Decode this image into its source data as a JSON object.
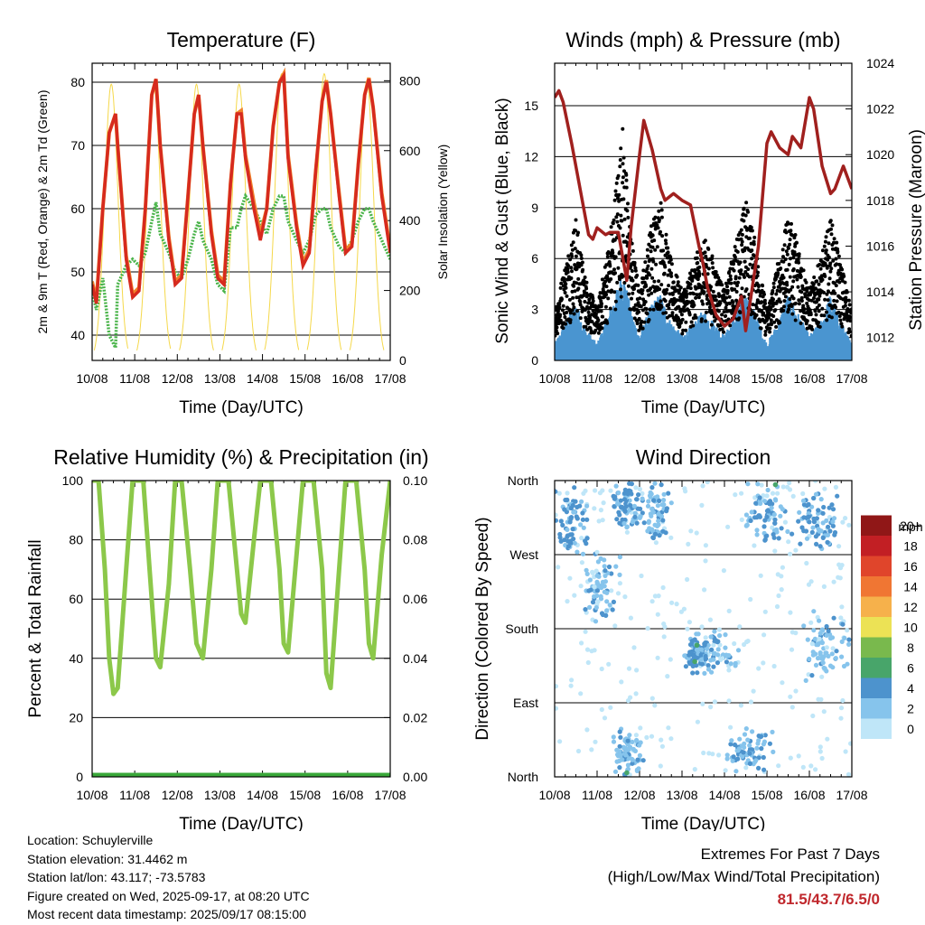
{
  "time_ticks": [
    "10/08",
    "11/08",
    "12/08",
    "13/08",
    "14/08",
    "15/08",
    "16/08",
    "17/08"
  ],
  "colors": {
    "temp_2m": "#d62a1e",
    "temp_9m": "#f0822a",
    "dewpoint": "#4ab44a",
    "solar": "#f5d84a",
    "wind": "#4a95d0",
    "gust": "#000000",
    "pressure": "#a0201e",
    "humidity": "#8cc84a",
    "precip": "#3aa83a"
  },
  "chart_data": [
    {
      "type": "line",
      "title": "Temperature (F)",
      "xlabel": "Time (Day/UTC)",
      "ylabel": "2m & 9m T (Red, Orange) & 2m Td (Green)",
      "ylabel_right": "Solar Insolation (Yellow)",
      "ylim": [
        36,
        83
      ],
      "ylim_right": [
        0,
        850
      ],
      "yticks": [
        40,
        50,
        60,
        70,
        80
      ],
      "yticks_right": [
        0,
        200,
        400,
        600,
        800
      ],
      "xlim": [
        0,
        7
      ],
      "grid": "horizontal",
      "x": [
        0,
        0.1,
        0.25,
        0.4,
        0.55,
        0.6,
        0.8,
        0.95,
        1.1,
        1.25,
        1.4,
        1.5,
        1.6,
        1.8,
        1.95,
        2.1,
        2.25,
        2.4,
        2.5,
        2.6,
        2.8,
        2.95,
        3.1,
        3.25,
        3.4,
        3.5,
        3.6,
        3.8,
        3.95,
        4.1,
        4.25,
        4.4,
        4.5,
        4.6,
        4.8,
        4.95,
        5.1,
        5.25,
        5.4,
        5.5,
        5.6,
        5.8,
        5.95,
        6.1,
        6.25,
        6.4,
        6.5,
        6.6,
        6.8,
        7
      ],
      "series": [
        {
          "name": "2m T",
          "values": [
            48,
            45,
            60,
            72,
            75,
            70,
            52,
            46,
            47,
            60,
            78,
            80.5,
            70,
            55,
            48,
            49,
            62,
            75,
            78,
            70,
            56,
            49,
            48,
            64,
            75,
            75,
            68,
            60,
            55,
            60,
            73,
            80,
            81,
            68,
            57,
            51,
            53,
            66,
            77,
            80,
            75,
            62,
            53,
            54,
            67,
            78,
            80.5,
            76,
            62,
            53
          ]
        },
        {
          "name": "9m T",
          "values": [
            48.5,
            45.5,
            60,
            72,
            75,
            70,
            52.5,
            46.5,
            47.5,
            60,
            78,
            80.5,
            70,
            55.5,
            48.5,
            49.5,
            62,
            75,
            78,
            70,
            56.5,
            49.5,
            48.5,
            64,
            75,
            75.5,
            68.5,
            61,
            56,
            60,
            73,
            80,
            81.3,
            68.5,
            57.5,
            51.5,
            53.5,
            66,
            77,
            80.3,
            75,
            62.5,
            53.5,
            54.5,
            67,
            78,
            80.7,
            76,
            62.5,
            53.5
          ]
        },
        {
          "name": "2m Td",
          "values": [
            47,
            44,
            49,
            40,
            38,
            48,
            51,
            52,
            51,
            53,
            58,
            61,
            56,
            53,
            50,
            49,
            52,
            56,
            58,
            55,
            52,
            48,
            47,
            57,
            57,
            60,
            62,
            60,
            58,
            56,
            60,
            62,
            62,
            58,
            55,
            53,
            55,
            59,
            60,
            60,
            57,
            54,
            53,
            55,
            58,
            60,
            60,
            58,
            55,
            52
          ]
        },
        {
          "name": "Solar Insolation",
          "axis": "right",
          "day_peaks": [
            0.45,
            1.45,
            2.45,
            3.45,
            4.45,
            5.45,
            6.45
          ],
          "peak_values": [
            790,
            780,
            790,
            790,
            820,
            820,
            800
          ]
        }
      ]
    },
    {
      "type": "scatter",
      "title": "Winds (mph) & Pressure (mb)",
      "xlabel": "Time (Day/UTC)",
      "ylabel": "Sonic Wind & Gust (Blue, Black)",
      "ylabel_right": "Station Pressure (Maroon)",
      "ylim": [
        0,
        17.5
      ],
      "yticks": [
        0,
        3,
        6,
        9,
        12,
        15
      ],
      "ylim_right": [
        1011,
        1024
      ],
      "yticks_right": [
        1012,
        1014,
        1016,
        1018,
        1020,
        1022,
        1024
      ],
      "xlim": [
        0,
        7
      ],
      "grid": "horizontal",
      "gust_envelope": {
        "x": [
          0,
          0.3,
          0.5,
          0.7,
          1.0,
          1.3,
          1.5,
          1.6,
          1.8,
          2.0,
          2.3,
          2.5,
          2.7,
          3.0,
          3.2,
          3.5,
          3.7,
          4.0,
          4.3,
          4.5,
          4.7,
          5.0,
          5.3,
          5.5,
          5.7,
          6.0,
          6.3,
          6.5,
          6.7,
          7.0
        ],
        "values": [
          2,
          5,
          7,
          4,
          2,
          6,
          10,
          12,
          6,
          3,
          7,
          8,
          5,
          3,
          4,
          6,
          5,
          3,
          6,
          8,
          6,
          2,
          5,
          7,
          6,
          3,
          5,
          7,
          5,
          2
        ]
      },
      "wind_envelope": {
        "x": [
          0,
          0.3,
          0.5,
          0.7,
          1.0,
          1.3,
          1.5,
          1.6,
          1.8,
          2.0,
          2.3,
          2.5,
          2.7,
          3.0,
          3.2,
          3.5,
          3.7,
          4.0,
          4.3,
          4.5,
          4.7,
          5.0,
          5.3,
          5.5,
          5.7,
          6.0,
          6.3,
          6.5,
          6.7,
          7.0
        ],
        "values": [
          1,
          2.5,
          3.5,
          2,
          1,
          3,
          4.5,
          5.5,
          3,
          1.5,
          3.5,
          4,
          2.5,
          1.5,
          2,
          3,
          2.5,
          1.5,
          3,
          4,
          3,
          1,
          2.5,
          4,
          3,
          1.5,
          2.5,
          4,
          2.5,
          1
        ]
      },
      "pressure": {
        "x": [
          0,
          0.1,
          0.2,
          0.4,
          0.6,
          0.8,
          0.9,
          1.0,
          1.2,
          1.3,
          1.5,
          1.7,
          1.8,
          2.0,
          2.1,
          2.3,
          2.5,
          2.6,
          2.8,
          3.0,
          3.2,
          3.4,
          3.5,
          3.6,
          3.8,
          4.0,
          4.2,
          4.4,
          4.5,
          4.6,
          4.8,
          5.0,
          5.1,
          5.3,
          5.5,
          5.6,
          5.8,
          6.0,
          6.1,
          6.3,
          6.5,
          6.6,
          6.8,
          7.0
        ],
        "values": [
          1022.5,
          1022.8,
          1022.3,
          1020.5,
          1018.5,
          1016.5,
          1016.3,
          1016.8,
          1016.5,
          1016.6,
          1016.6,
          1014.5,
          1016.8,
          1020.0,
          1021.5,
          1020.2,
          1018.5,
          1018.0,
          1018.3,
          1018.0,
          1017.8,
          1016.0,
          1015.2,
          1014.2,
          1013.0,
          1012.5,
          1012.8,
          1013.8,
          1012.3,
          1013.5,
          1016.0,
          1020.5,
          1021.0,
          1020.3,
          1020.0,
          1020.8,
          1020.3,
          1022.5,
          1022.0,
          1019.5,
          1018.3,
          1018.5,
          1019.5,
          1018.5
        ]
      }
    },
    {
      "type": "line",
      "title": "Relative Humidity (%) & Precipitation (in)",
      "xlabel": "Time (Day/UTC)",
      "ylabel": "Percent & Total Rainfall",
      "ylim": [
        0,
        100
      ],
      "yticks": [
        0,
        20,
        40,
        60,
        80,
        100
      ],
      "ylim_right": [
        0,
        0.1
      ],
      "yticks_right": [
        "0.00",
        "0.02",
        "0.04",
        "0.06",
        "0.08",
        "0.10"
      ],
      "xlim": [
        0,
        7
      ],
      "grid": "horizontal",
      "x": [
        0,
        0.15,
        0.3,
        0.4,
        0.5,
        0.6,
        0.8,
        0.95,
        1.2,
        1.35,
        1.5,
        1.6,
        1.8,
        1.95,
        2.1,
        2.3,
        2.45,
        2.6,
        2.8,
        2.95,
        3.2,
        3.4,
        3.5,
        3.6,
        3.8,
        3.95,
        4.2,
        4.4,
        4.5,
        4.6,
        4.8,
        4.95,
        5.2,
        5.4,
        5.5,
        5.6,
        5.8,
        5.95,
        6.2,
        6.4,
        6.5,
        6.6,
        6.8,
        7.0
      ],
      "series": [
        {
          "name": "Relative Humidity",
          "values": [
            100,
            100,
            70,
            40,
            28,
            30,
            70,
            100,
            100,
            70,
            40,
            37,
            65,
            100,
            100,
            70,
            45,
            40,
            70,
            100,
            100,
            70,
            55,
            52,
            80,
            100,
            100,
            70,
            45,
            42,
            75,
            100,
            100,
            70,
            35,
            30,
            70,
            100,
            100,
            70,
            45,
            40,
            75,
            100
          ]
        },
        {
          "name": "Total Precipitation",
          "axis": "right",
          "values": [
            0,
            0,
            0,
            0,
            0,
            0,
            0,
            0,
            0,
            0,
            0,
            0,
            0,
            0,
            0,
            0,
            0,
            0,
            0,
            0,
            0,
            0,
            0,
            0,
            0,
            0,
            0,
            0,
            0,
            0,
            0,
            0,
            0,
            0,
            0,
            0,
            0,
            0,
            0,
            0,
            0,
            0,
            0,
            0
          ]
        }
      ]
    },
    {
      "type": "scatter",
      "title": "Wind Direction",
      "xlabel": "Time (Day/UTC)",
      "ylabel": "Direction (Colored By Speed)",
      "yticks": [
        "North",
        "East",
        "South",
        "West",
        "North"
      ],
      "ylim": [
        0,
        360
      ],
      "xlim": [
        0,
        7
      ],
      "grid": "horizontal",
      "legend": {
        "title": "mph",
        "placement": "right",
        "labels": [
          "0",
          "2",
          "4",
          "6",
          "8",
          "10",
          "12",
          "14",
          "16",
          "18",
          "20+"
        ],
        "colors": [
          "#bfe6f8",
          "#86c4ec",
          "#4d93cd",
          "#48a56a",
          "#79b94d",
          "#ece255",
          "#f6b14b",
          "#f07633",
          "#e0452b",
          "#c21f24",
          "#901717"
        ]
      },
      "clusters": [
        {
          "x_center": 0.4,
          "x_spread": 0.5,
          "dir_center": 310,
          "dir_spread": 50,
          "speed": 3
        },
        {
          "x_center": 1.7,
          "x_spread": 0.4,
          "dir_center": 330,
          "dir_spread": 30,
          "speed": 3
        },
        {
          "x_center": 2.4,
          "x_spread": 0.4,
          "dir_center": 320,
          "dir_spread": 40,
          "speed": 2
        },
        {
          "x_center": 1.1,
          "x_spread": 0.5,
          "dir_center": 230,
          "dir_spread": 50,
          "speed": 1
        },
        {
          "x_center": 3.7,
          "x_spread": 0.7,
          "dir_center": 150,
          "dir_spread": 30,
          "speed": 1
        },
        {
          "x_center": 3.3,
          "x_spread": 0.3,
          "dir_center": 150,
          "dir_spread": 20,
          "speed": 4
        },
        {
          "x_center": 5.0,
          "x_spread": 0.6,
          "dir_center": 320,
          "dir_spread": 40,
          "speed": 3
        },
        {
          "x_center": 6.2,
          "x_spread": 0.5,
          "dir_center": 310,
          "dir_spread": 40,
          "speed": 3
        },
        {
          "x_center": 1.7,
          "x_spread": 0.4,
          "dir_center": 30,
          "dir_spread": 30,
          "speed": 2
        },
        {
          "x_center": 4.6,
          "x_spread": 0.6,
          "dir_center": 30,
          "dir_spread": 30,
          "speed": 2
        },
        {
          "x_center": 6.4,
          "x_spread": 0.6,
          "dir_center": 160,
          "dir_spread": 50,
          "speed": 1
        }
      ]
    }
  ],
  "info": {
    "location": "Location: Schuylerville",
    "elevation": "Station elevation: 31.4462 m",
    "latlon": "Station lat/lon: 43.117; -73.5783",
    "created": "Figure created on Wed, 2025-09-17, at 08:20 UTC",
    "recent": "Most recent data timestamp: 2025/09/17 08:15:00"
  },
  "extremes": {
    "title": "Extremes For Past 7 Days",
    "subtitle": "(High/Low/Max Wind/Total Precipitation)",
    "values": "81.5/43.7/6.5/0"
  }
}
